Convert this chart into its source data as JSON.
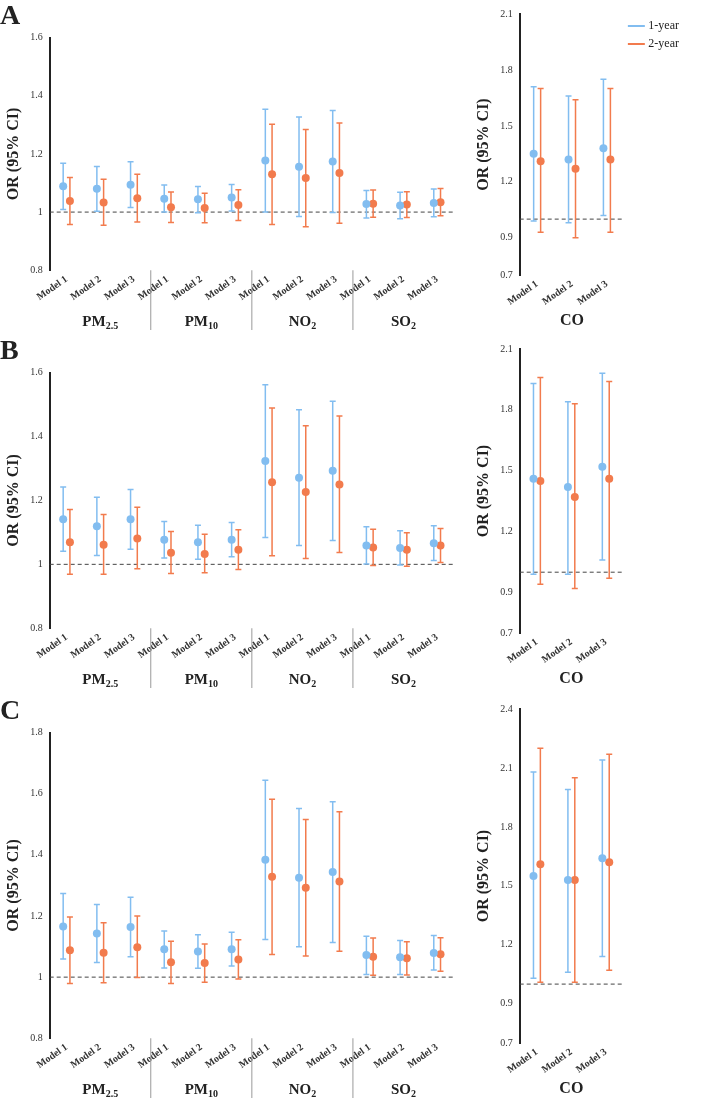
{
  "chart_data": [
    {
      "type": "scatter",
      "title": "A",
      "ylabel": "OR (95% CI)",
      "categories": [
        "Model 1",
        "Model 2",
        "Model 3",
        "Model 1",
        "Model 2",
        "Model 3",
        "Model 1",
        "Model 2",
        "Model 3",
        "Model 1",
        "Model 2",
        "Model 3"
      ],
      "annotations": [
        "PM$_{2.5}$",
        "PM$_{10}$",
        "NO$_{2}$",
        "SO$_{2}$"
      ],
      "ylim": [
        0.8,
        1.6
      ],
      "yticks": [
        0.8,
        1,
        1.2,
        1.4,
        1.6
      ],
      "marker": "circle",
      "ref_lines": [
        {
          "axis": "y",
          "value": 1,
          "line_style": "dashed",
          "color": "#444444"
        }
      ],
      "series": [
        {
          "color": "#82bdf0",
          "values": [
            1.089,
            1.08,
            1.094,
            1.046,
            1.044,
            1.05,
            1.177,
            1.156,
            1.174,
            1.028,
            1.023,
            1.031
          ],
          "errors": [
            [
              1.009,
              1.168
            ],
            [
              1.003,
              1.157
            ],
            [
              1.016,
              1.173
            ],
            [
              1.0,
              1.093
            ],
            [
              0.998,
              1.088
            ],
            [
              1.004,
              1.095
            ],
            [
              1.0,
              1.354
            ],
            [
              0.985,
              1.327
            ],
            [
              0.999,
              1.349
            ],
            [
              0.98,
              1.074
            ],
            [
              0.977,
              1.068
            ],
            [
              0.984,
              1.079
            ]
          ]
        },
        {
          "color": "#f27b4d",
          "values": [
            1.038,
            1.033,
            1.048,
            1.017,
            1.014,
            1.024,
            1.13,
            1.117,
            1.134,
            1.029,
            1.026,
            1.034
          ],
          "errors": [
            [
              0.957,
              1.119
            ],
            [
              0.955,
              1.113
            ],
            [
              0.966,
              1.13
            ],
            [
              0.964,
              1.069
            ],
            [
              0.963,
              1.065
            ],
            [
              0.971,
              1.077
            ],
            [
              0.957,
              1.302
            ],
            [
              0.95,
              1.284
            ],
            [
              0.962,
              1.306
            ],
            [
              0.982,
              1.076
            ],
            [
              0.981,
              1.07
            ],
            [
              0.987,
              1.081
            ]
          ]
        }
      ]
    },
    {
      "type": "scatter",
      "ylabel": "OR (95% CI)",
      "xlabel": "CO",
      "categories": [
        "Model 1",
        "Model 2",
        "Model 3"
      ],
      "ylim": [
        0.7,
        2.1
      ],
      "yticks": [
        0.7,
        0.9,
        1.2,
        1.5,
        1.8,
        2.1
      ],
      "marker": "circle",
      "legend": "top right",
      "ref_lines": [
        {
          "axis": "y",
          "value": 1,
          "line_style": "dashed",
          "color": "#444444"
        }
      ],
      "series": [
        {
          "name": "1-year",
          "color": "#82bdf0",
          "values": [
            1.35,
            1.32,
            1.38
          ],
          "errors": [
            [
              0.99,
              1.71
            ],
            [
              0.98,
              1.66
            ],
            [
              1.02,
              1.75
            ]
          ]
        },
        {
          "name": "2-year",
          "color": "#f27b4d",
          "values": [
            1.31,
            1.27,
            1.32
          ],
          "errors": [
            [
              0.93,
              1.7
            ],
            [
              0.9,
              1.64
            ],
            [
              0.93,
              1.7
            ]
          ]
        }
      ]
    },
    {
      "type": "scatter",
      "title": "B",
      "ylabel": "OR (95% CI)",
      "categories": [
        "Model 1",
        "Model 2",
        "Model 3",
        "Model 1",
        "Model 2",
        "Model 3",
        "Model 1",
        "Model 2",
        "Model 3",
        "Model 1",
        "Model 2",
        "Model 3"
      ],
      "annotations": [
        "PM$_{2.5}$",
        "PM$_{10}$",
        "NO$_{2}$",
        "SO$_{2}$"
      ],
      "ylim": [
        0.8,
        1.6
      ],
      "yticks": [
        0.8,
        1,
        1.2,
        1.4,
        1.6
      ],
      "marker": "circle",
      "ref_lines": [
        {
          "axis": "y",
          "value": 1,
          "line_style": "dashed",
          "color": "#444444"
        }
      ],
      "series": [
        {
          "color": "#82bdf0",
          "values": [
            1.141,
            1.119,
            1.141,
            1.077,
            1.069,
            1.077,
            1.323,
            1.271,
            1.293,
            1.059,
            1.051,
            1.066
          ],
          "errors": [
            [
              1.041,
              1.242
            ],
            [
              1.028,
              1.21
            ],
            [
              1.047,
              1.234
            ],
            [
              1.02,
              1.134
            ],
            [
              1.016,
              1.122
            ],
            [
              1.024,
              1.131
            ],
            [
              1.084,
              1.562
            ],
            [
              1.059,
              1.484
            ],
            [
              1.075,
              1.51
            ],
            [
              1.001,
              1.118
            ],
            [
              0.998,
              1.105
            ],
            [
              1.012,
              1.121
            ]
          ]
        },
        {
          "color": "#f27b4d",
          "values": [
            1.069,
            1.061,
            1.081,
            1.036,
            1.032,
            1.046,
            1.257,
            1.226,
            1.25,
            1.053,
            1.046,
            1.059
          ],
          "errors": [
            [
              0.969,
              1.172
            ],
            [
              0.969,
              1.156
            ],
            [
              0.986,
              1.179
            ],
            [
              0.971,
              1.103
            ],
            [
              0.974,
              1.094
            ],
            [
              0.984,
              1.108
            ],
            [
              1.027,
              1.489
            ],
            [
              1.018,
              1.434
            ],
            [
              1.037,
              1.464
            ],
            [
              0.996,
              1.11
            ],
            [
              0.994,
              1.099
            ],
            [
              1.006,
              1.112
            ]
          ]
        }
      ]
    },
    {
      "type": "scatter",
      "ylabel": "OR (95% CI)",
      "xlabel": "CO",
      "categories": [
        "Model 1",
        "Model 2",
        "Model 3"
      ],
      "ylim": [
        0.7,
        2.1
      ],
      "yticks": [
        0.7,
        0.9,
        1.2,
        1.5,
        1.8,
        2.1
      ],
      "marker": "circle",
      "ref_lines": [
        {
          "axis": "y",
          "value": 1,
          "line_style": "dashed",
          "color": "#444444"
        }
      ],
      "series": [
        {
          "color": "#82bdf0",
          "values": [
            1.46,
            1.42,
            1.52
          ],
          "errors": [
            [
              0.99,
              1.93
            ],
            [
              0.99,
              1.84
            ],
            [
              1.06,
              1.98
            ]
          ]
        },
        {
          "color": "#f27b4d",
          "values": [
            1.45,
            1.37,
            1.46
          ],
          "errors": [
            [
              0.94,
              1.96
            ],
            [
              0.92,
              1.83
            ],
            [
              0.97,
              1.94
            ]
          ]
        }
      ]
    },
    {
      "type": "scatter",
      "title": "C",
      "ylabel": "OR (95% CI)",
      "categories": [
        "Model 1",
        "Model 2",
        "Model 3",
        "Model 1",
        "Model 2",
        "Model 3",
        "Model 1",
        "Model 2",
        "Model 3",
        "Model 1",
        "Model 2",
        "Model 3"
      ],
      "annotations": [
        "PM$_{2.5}$",
        "PM$_{10}$",
        "NO$_{2}$",
        "SO$_{2}$"
      ],
      "ylim": [
        0.8,
        1.8
      ],
      "yticks": [
        0.8,
        1,
        1.2,
        1.4,
        1.6,
        1.8
      ],
      "marker": "circle",
      "ref_lines": [
        {
          "axis": "y",
          "value": 1,
          "line_style": "dashed",
          "color": "#444444"
        }
      ],
      "series": [
        {
          "color": "#82bdf0",
          "values": [
            1.166,
            1.143,
            1.164,
            1.091,
            1.084,
            1.091,
            1.384,
            1.325,
            1.344,
            1.072,
            1.065,
            1.079
          ],
          "errors": [
            [
              1.059,
              1.274
            ],
            [
              1.048,
              1.238
            ],
            [
              1.067,
              1.261
            ],
            [
              1.03,
              1.151
            ],
            [
              1.029,
              1.139
            ],
            [
              1.036,
              1.147
            ],
            [
              1.123,
              1.644
            ],
            [
              1.099,
              1.552
            ],
            [
              1.113,
              1.574
            ],
            [
              1.009,
              1.134
            ],
            [
              1.009,
              1.12
            ],
            [
              1.023,
              1.136
            ]
          ]
        },
        {
          "color": "#f27b4d",
          "values": [
            1.088,
            1.08,
            1.098,
            1.049,
            1.046,
            1.058,
            1.328,
            1.292,
            1.313,
            1.067,
            1.062,
            1.075
          ],
          "errors": [
            [
              0.979,
              1.197
            ],
            [
              0.982,
              1.178
            ],
            [
              0.999,
              1.2
            ],
            [
              0.979,
              1.117
            ],
            [
              0.983,
              1.108
            ],
            [
              0.994,
              1.122
            ],
            [
              1.074,
              1.582
            ],
            [
              1.069,
              1.516
            ],
            [
              1.085,
              1.541
            ],
            [
              1.006,
              1.128
            ],
            [
              1.007,
              1.116
            ],
            [
              1.019,
              1.129
            ]
          ]
        }
      ]
    },
    {
      "type": "scatter",
      "ylabel": "OR (95% CI)",
      "xlabel": "CO",
      "categories": [
        "Model 1",
        "Model 2",
        "Model 3"
      ],
      "ylim": [
        0.7,
        2.4
      ],
      "yticks": [
        0.7,
        0.9,
        1.2,
        1.5,
        1.8,
        2.1,
        2.4
      ],
      "marker": "circle",
      "ref_lines": [
        {
          "axis": "y",
          "value": 1,
          "line_style": "dashed",
          "color": "#444444"
        }
      ],
      "series": [
        {
          "color": "#82bdf0",
          "values": [
            1.55,
            1.53,
            1.64
          ],
          "errors": [
            [
              1.03,
              2.08
            ],
            [
              1.06,
              1.99
            ],
            [
              1.14,
              2.14
            ]
          ]
        },
        {
          "color": "#f27b4d",
          "values": [
            1.61,
            1.53,
            1.62
          ],
          "errors": [
            [
              1.01,
              2.2
            ],
            [
              1.01,
              2.05
            ],
            [
              1.07,
              2.17
            ]
          ]
        }
      ]
    }
  ]
}
